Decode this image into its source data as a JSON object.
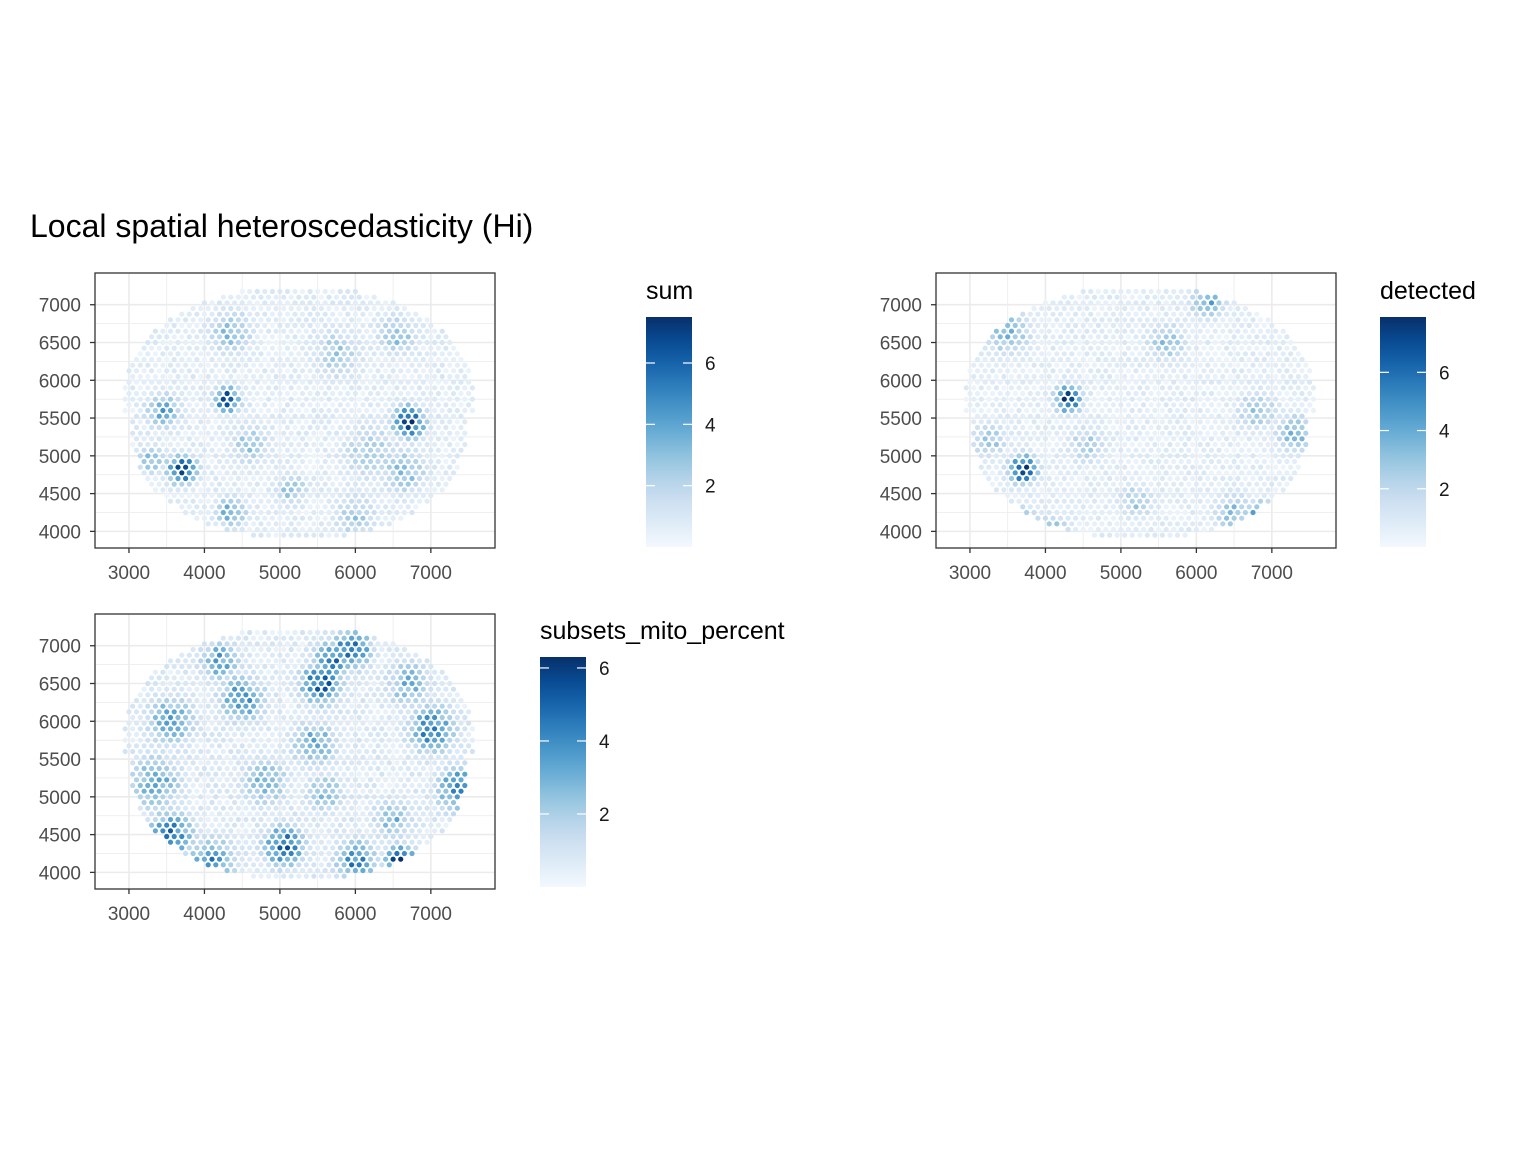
{
  "figure": {
    "title": "Local spatial heteroscedasticity (Hi)"
  },
  "chart_data": [
    {
      "type": "scatter",
      "variable": "sum",
      "legend_title": "sum",
      "legend_ticks": [
        2,
        4,
        6
      ],
      "value_range": [
        0,
        7.5
      ],
      "xlim": [
        2550,
        7850
      ],
      "ylim": [
        3780,
        7420
      ],
      "x_ticks": [
        3000,
        4000,
        5000,
        6000,
        7000
      ],
      "y_ticks": [
        4000,
        4500,
        5000,
        5500,
        6000,
        6500,
        7000
      ],
      "grid": true,
      "legend_position": "right",
      "hotspots": [
        {
          "x": 4300,
          "y": 5750,
          "value": 6.8,
          "radius": 180
        },
        {
          "x": 6700,
          "y": 5450,
          "value": 7.3,
          "radius": 230
        },
        {
          "x": 3700,
          "y": 4820,
          "value": 7.0,
          "radius": 210
        },
        {
          "x": 3450,
          "y": 5600,
          "value": 3.8,
          "radius": 260
        },
        {
          "x": 4350,
          "y": 4250,
          "value": 3.8,
          "radius": 230
        },
        {
          "x": 4350,
          "y": 6650,
          "value": 3.2,
          "radius": 320
        },
        {
          "x": 6650,
          "y": 4800,
          "value": 3.2,
          "radius": 330
        },
        {
          "x": 6550,
          "y": 6600,
          "value": 3.0,
          "radius": 300
        },
        {
          "x": 5150,
          "y": 4550,
          "value": 3.0,
          "radius": 230
        },
        {
          "x": 4600,
          "y": 5150,
          "value": 2.8,
          "radius": 300
        },
        {
          "x": 5750,
          "y": 6350,
          "value": 2.6,
          "radius": 380
        },
        {
          "x": 6200,
          "y": 5050,
          "value": 2.6,
          "radius": 420
        },
        {
          "x": 3300,
          "y": 4950,
          "value": 3.0,
          "radius": 220
        },
        {
          "x": 6000,
          "y": 4200,
          "value": 2.6,
          "radius": 330
        }
      ]
    },
    {
      "type": "scatter",
      "variable": "detected",
      "legend_title": "detected",
      "legend_ticks": [
        2,
        4,
        6
      ],
      "value_range": [
        0,
        7.9
      ],
      "xlim": [
        2550,
        7850
      ],
      "ylim": [
        3780,
        7420
      ],
      "x_ticks": [
        3000,
        4000,
        5000,
        6000,
        7000
      ],
      "y_ticks": [
        4000,
        4500,
        5000,
        5500,
        6000,
        6500,
        7000
      ],
      "grid": true,
      "legend_position": "right",
      "hotspots": [
        {
          "x": 4300,
          "y": 5750,
          "value": 7.4,
          "radius": 190
        },
        {
          "x": 3700,
          "y": 4820,
          "value": 6.8,
          "radius": 210
        },
        {
          "x": 6900,
          "y": 4200,
          "value": 7.6,
          "radius": 200
        },
        {
          "x": 3700,
          "y": 4100,
          "value": 5.4,
          "radius": 220
        },
        {
          "x": 6150,
          "y": 7050,
          "value": 4.0,
          "radius": 260
        },
        {
          "x": 7300,
          "y": 5300,
          "value": 3.8,
          "radius": 280
        },
        {
          "x": 3500,
          "y": 6650,
          "value": 3.4,
          "radius": 350
        },
        {
          "x": 4100,
          "y": 4000,
          "value": 3.2,
          "radius": 250
        },
        {
          "x": 5600,
          "y": 6500,
          "value": 3.0,
          "radius": 300
        },
        {
          "x": 6800,
          "y": 5600,
          "value": 3.0,
          "radius": 300
        },
        {
          "x": 6500,
          "y": 4250,
          "value": 3.2,
          "radius": 300
        },
        {
          "x": 5200,
          "y": 4400,
          "value": 2.8,
          "radius": 260
        },
        {
          "x": 3250,
          "y": 5200,
          "value": 3.0,
          "radius": 260
        },
        {
          "x": 4550,
          "y": 5150,
          "value": 2.6,
          "radius": 300
        }
      ]
    },
    {
      "type": "scatter",
      "variable": "subsets_mito_percent",
      "legend_title": "subsets_mito_percent",
      "legend_ticks": [
        2,
        4,
        6
      ],
      "value_range": [
        0,
        6.3
      ],
      "xlim": [
        2550,
        7850
      ],
      "ylim": [
        3780,
        7420
      ],
      "x_ticks": [
        3000,
        4000,
        5000,
        6000,
        7000
      ],
      "y_ticks": [
        4000,
        4500,
        5000,
        5500,
        6000,
        6500,
        7000
      ],
      "grid": true,
      "legend_position": "right",
      "hotspots": [
        {
          "x": 6600,
          "y": 4150,
          "value": 6.2,
          "radius": 220
        },
        {
          "x": 5950,
          "y": 6950,
          "value": 5.0,
          "radius": 280
        },
        {
          "x": 5550,
          "y": 6500,
          "value": 5.2,
          "radius": 300
        },
        {
          "x": 5700,
          "y": 6800,
          "value": 4.4,
          "radius": 280
        },
        {
          "x": 7400,
          "y": 5100,
          "value": 4.8,
          "radius": 330
        },
        {
          "x": 7000,
          "y": 5900,
          "value": 4.2,
          "radius": 350
        },
        {
          "x": 3550,
          "y": 4500,
          "value": 4.5,
          "radius": 330
        },
        {
          "x": 5050,
          "y": 4350,
          "value": 4.8,
          "radius": 300
        },
        {
          "x": 6000,
          "y": 4150,
          "value": 4.2,
          "radius": 300
        },
        {
          "x": 4100,
          "y": 4150,
          "value": 4.0,
          "radius": 330
        },
        {
          "x": 4500,
          "y": 6300,
          "value": 3.8,
          "radius": 340
        },
        {
          "x": 4200,
          "y": 6800,
          "value": 3.4,
          "radius": 300
        },
        {
          "x": 3550,
          "y": 6000,
          "value": 3.4,
          "radius": 360
        },
        {
          "x": 3350,
          "y": 5200,
          "value": 3.2,
          "radius": 400
        },
        {
          "x": 6700,
          "y": 6500,
          "value": 3.0,
          "radius": 340
        },
        {
          "x": 5450,
          "y": 5700,
          "value": 3.4,
          "radius": 330
        },
        {
          "x": 4800,
          "y": 5200,
          "value": 2.8,
          "radius": 360
        },
        {
          "x": 6500,
          "y": 4700,
          "value": 2.8,
          "radius": 320
        },
        {
          "x": 5600,
          "y": 5050,
          "value": 2.6,
          "radius": 300
        }
      ]
    }
  ],
  "palette": {
    "low": "#f7fbff",
    "stops": [
      "#f7fbff",
      "#deebf7",
      "#c6dbef",
      "#9ecae1",
      "#6baed6",
      "#4292c6",
      "#2171b5",
      "#08519c",
      "#08306b"
    ],
    "panel_border": "#333333",
    "grid": "#ebebeb"
  }
}
